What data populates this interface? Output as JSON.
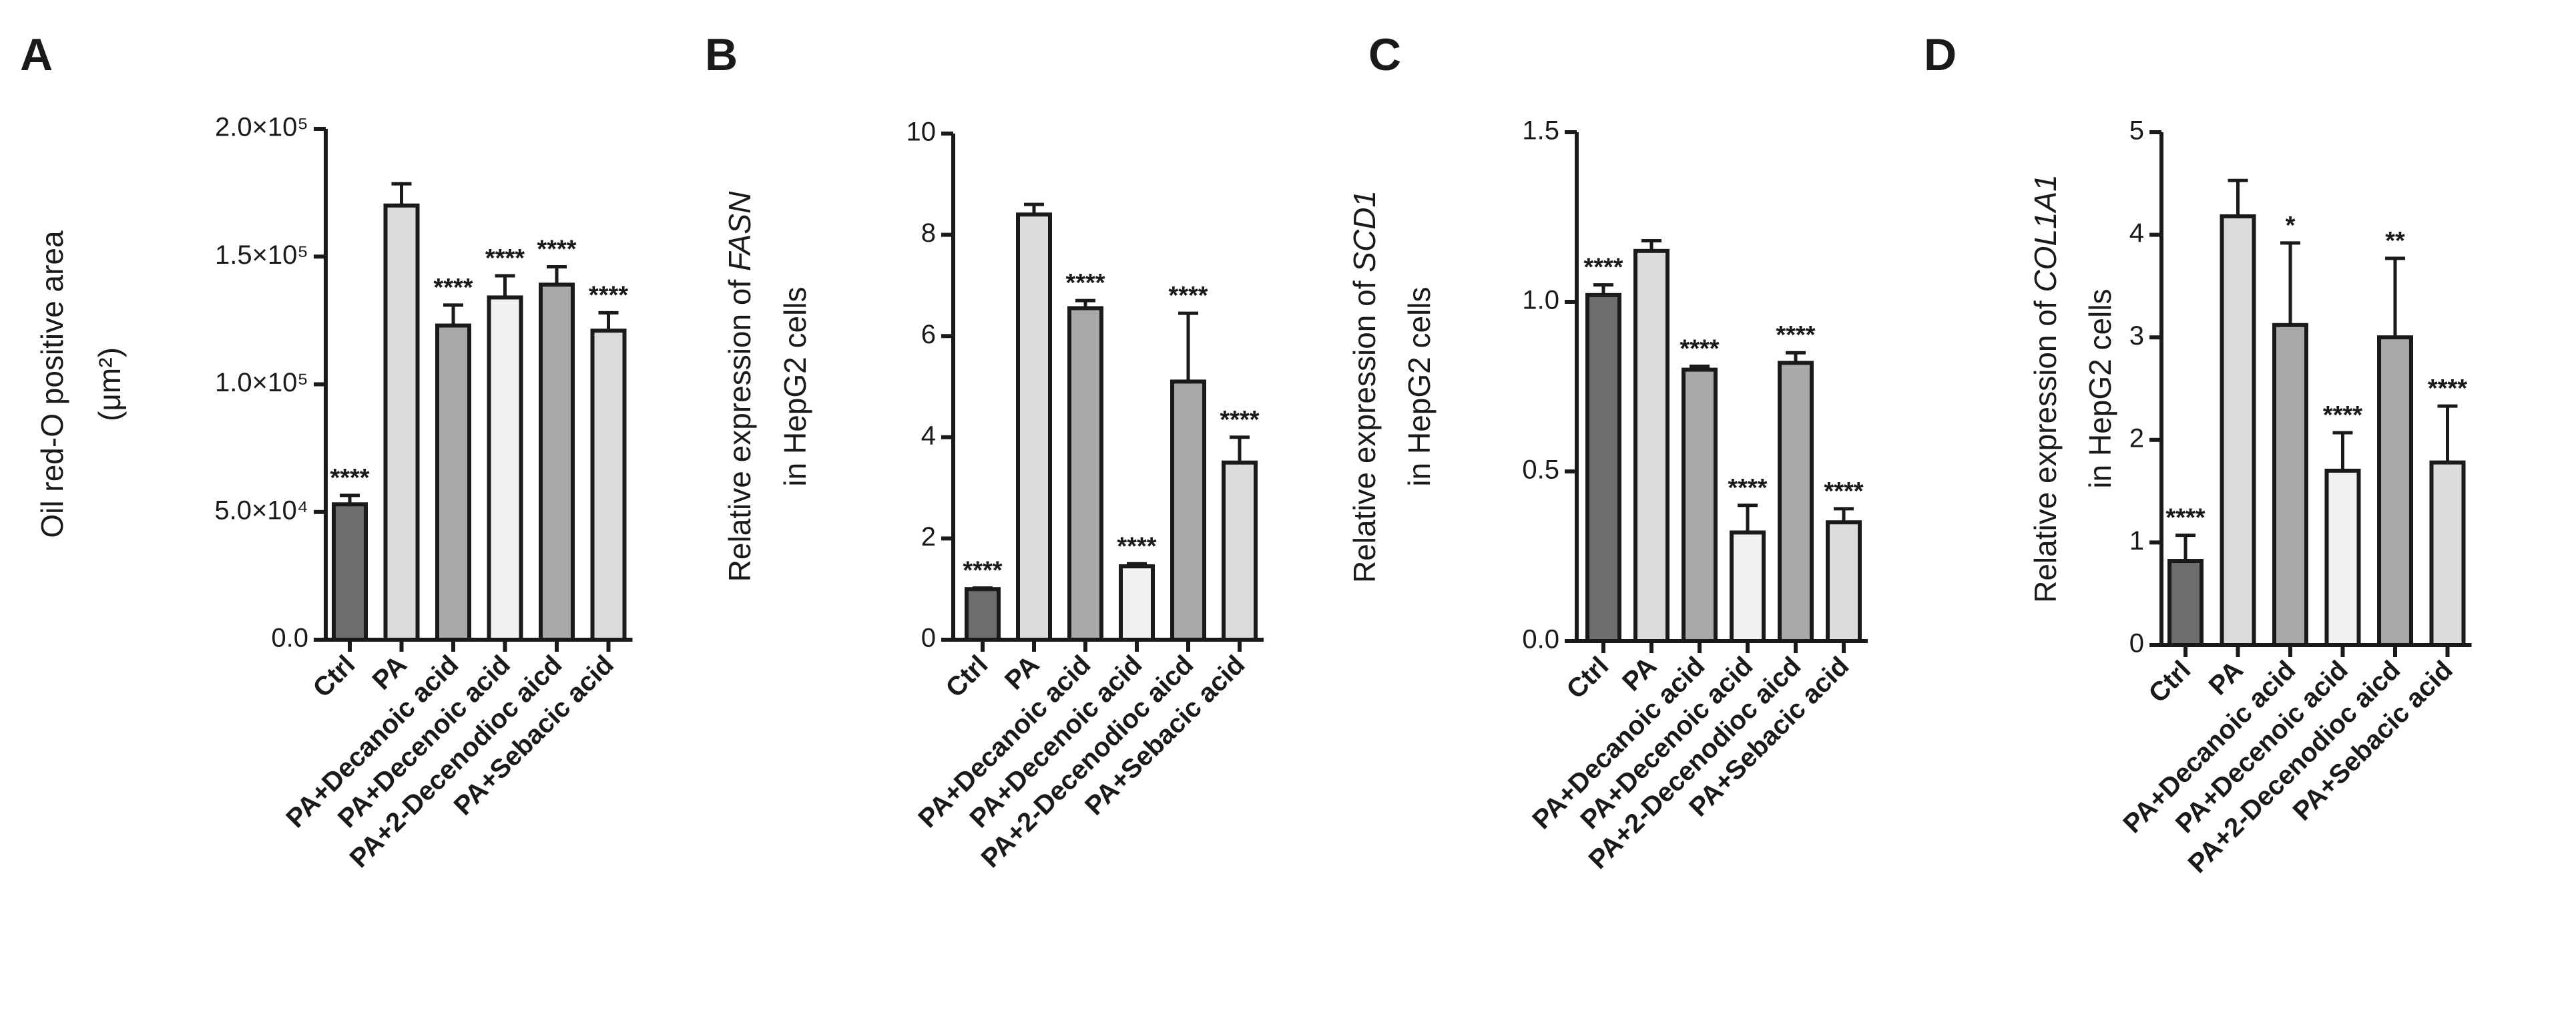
{
  "categories": [
    "Ctrl",
    "PA",
    "PA+Decanoic acid",
    "PA+Decenoic acid",
    "PA+2-Decenodioc aicd",
    "PA+Sebacic acid"
  ],
  "bar_fills": [
    "#6d6d6d",
    "#dcdcdc",
    "#a9a9a9",
    "#f1f1f1",
    "#a9a9a9",
    "#dcdcdc"
  ],
  "chart_data": [
    {
      "type": "bar",
      "panel": "A",
      "ylabel": "Oil red-O positive area",
      "ylabel_line2": "(μm²)",
      "ylim": [
        0,
        200000
      ],
      "ticks": [
        0,
        50000,
        100000,
        150000,
        200000
      ],
      "tick_labels": [
        "0.0",
        "5.0×10⁴",
        "1.0×10⁵",
        "1.5×10⁵",
        "2.0×10⁵"
      ],
      "values": [
        53000,
        170000,
        123000,
        134000,
        139000,
        121000
      ],
      "errors": [
        3500,
        8500,
        8000,
        8500,
        7000,
        7000
      ],
      "significance": [
        "****",
        "",
        "****",
        "****",
        "****",
        "****"
      ]
    },
    {
      "type": "bar",
      "panel": "B",
      "ylabel_pre": "Relative expression of ",
      "gene": "FASN",
      "ylabel_line2": "in HepG2 cells",
      "ylim": [
        0,
        10
      ],
      "ticks": [
        0,
        2,
        4,
        6,
        8,
        10
      ],
      "tick_labels": [
        "0",
        "2",
        "4",
        "6",
        "8",
        "10"
      ],
      "values": [
        1.0,
        8.4,
        6.55,
        1.45,
        5.1,
        3.5
      ],
      "errors": [
        0.02,
        0.2,
        0.15,
        0.05,
        1.35,
        0.5
      ],
      "significance": [
        "****",
        "",
        "****",
        "****",
        "****",
        "****"
      ]
    },
    {
      "type": "bar",
      "panel": "C",
      "ylabel_pre": "Relative expression of ",
      "gene": "SCD1",
      "ylabel_line2": "in HepG2 cells",
      "ylim": [
        0,
        1.5
      ],
      "ticks": [
        0,
        0.5,
        1.0,
        1.5
      ],
      "tick_labels": [
        "0.0",
        "0.5",
        "1.0",
        "1.5"
      ],
      "values": [
        1.02,
        1.15,
        0.8,
        0.32,
        0.82,
        0.35
      ],
      "errors": [
        0.03,
        0.03,
        0.01,
        0.08,
        0.03,
        0.04
      ],
      "significance": [
        "****",
        "",
        "****",
        "****",
        "****",
        "****"
      ]
    },
    {
      "type": "bar",
      "panel": "D",
      "ylabel_pre": "Relative expression of ",
      "gene": "COL1A1",
      "ylabel_line2": "in HepG2 cells",
      "ylim": [
        0,
        5
      ],
      "ticks": [
        0,
        1,
        2,
        3,
        4,
        5
      ],
      "tick_labels": [
        "0",
        "1",
        "2",
        "3",
        "4",
        "5"
      ],
      "values": [
        0.82,
        4.18,
        3.12,
        1.7,
        3.0,
        1.78
      ],
      "errors": [
        0.25,
        0.35,
        0.8,
        0.37,
        0.77,
        0.55
      ],
      "significance": [
        "****",
        "",
        "*",
        "****",
        "**",
        "****"
      ]
    }
  ]
}
